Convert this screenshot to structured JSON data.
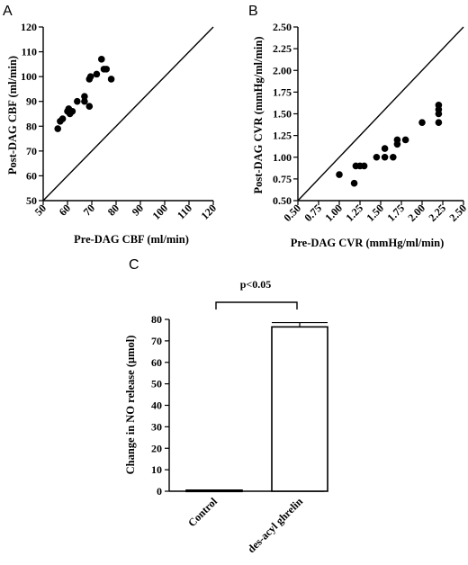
{
  "chart_data": [
    {
      "panel": "A",
      "type": "scatter",
      "xlabel": "Pre-DAG CBF (ml/min)",
      "ylabel": "Post-DAG CBF (ml/min)",
      "xlim": [
        50,
        120
      ],
      "ylim": [
        50,
        120
      ],
      "xticks": [
        50,
        60,
        70,
        80,
        90,
        100,
        110,
        120
      ],
      "yticks": [
        50,
        60,
        70,
        80,
        90,
        100,
        110,
        120
      ],
      "identity_line": true,
      "points": [
        {
          "x": 56,
          "y": 79
        },
        {
          "x": 57,
          "y": 82
        },
        {
          "x": 58,
          "y": 83
        },
        {
          "x": 60,
          "y": 86
        },
        {
          "x": 60.5,
          "y": 87
        },
        {
          "x": 61,
          "y": 85
        },
        {
          "x": 62,
          "y": 86
        },
        {
          "x": 64,
          "y": 90
        },
        {
          "x": 67,
          "y": 90
        },
        {
          "x": 67,
          "y": 92
        },
        {
          "x": 69,
          "y": 88
        },
        {
          "x": 69,
          "y": 99
        },
        {
          "x": 69.5,
          "y": 100
        },
        {
          "x": 72,
          "y": 101
        },
        {
          "x": 74,
          "y": 107
        },
        {
          "x": 75,
          "y": 103
        },
        {
          "x": 76,
          "y": 103
        },
        {
          "x": 78,
          "y": 99
        }
      ]
    },
    {
      "panel": "B",
      "type": "scatter",
      "xlabel": "Pre-DAG CVR (mmHg/ml/min)",
      "ylabel": "Post-DAG CVR (mmHg/ml/min)",
      "xlim": [
        0.5,
        2.5
      ],
      "ylim": [
        0.5,
        2.5
      ],
      "xticks": [
        "0.50",
        "0.75",
        "1.00",
        "1.25",
        "1.50",
        "1.75",
        "2.00",
        "2.25",
        "2.50"
      ],
      "yticks": [
        "0.50",
        "0.75",
        "1.00",
        "1.25",
        "1.50",
        "1.75",
        "2.00",
        "2.25",
        "2.50"
      ],
      "identity_line": true,
      "points": [
        {
          "x": 1.0,
          "y": 0.8
        },
        {
          "x": 1.18,
          "y": 0.7
        },
        {
          "x": 1.2,
          "y": 0.9
        },
        {
          "x": 1.25,
          "y": 0.9
        },
        {
          "x": 1.3,
          "y": 0.9
        },
        {
          "x": 1.45,
          "y": 1.0
        },
        {
          "x": 1.55,
          "y": 1.0
        },
        {
          "x": 1.55,
          "y": 1.1
        },
        {
          "x": 1.65,
          "y": 1.0
        },
        {
          "x": 1.7,
          "y": 1.15
        },
        {
          "x": 1.7,
          "y": 1.2
        },
        {
          "x": 1.8,
          "y": 1.2
        },
        {
          "x": 2.0,
          "y": 1.4
        },
        {
          "x": 2.2,
          "y": 1.4
        },
        {
          "x": 2.2,
          "y": 1.5
        },
        {
          "x": 2.2,
          "y": 1.55
        },
        {
          "x": 2.2,
          "y": 1.6
        }
      ]
    },
    {
      "panel": "C",
      "type": "bar",
      "ylabel": "Change in NO release (μmol)",
      "categories": [
        "Control",
        "des-acyl ghrelin"
      ],
      "values": [
        0.5,
        76.5
      ],
      "errors": [
        0,
        2
      ],
      "ylim": [
        0,
        80
      ],
      "yticks": [
        0,
        10,
        20,
        30,
        40,
        50,
        60,
        70,
        80
      ],
      "annotation": "p<0.05"
    }
  ]
}
